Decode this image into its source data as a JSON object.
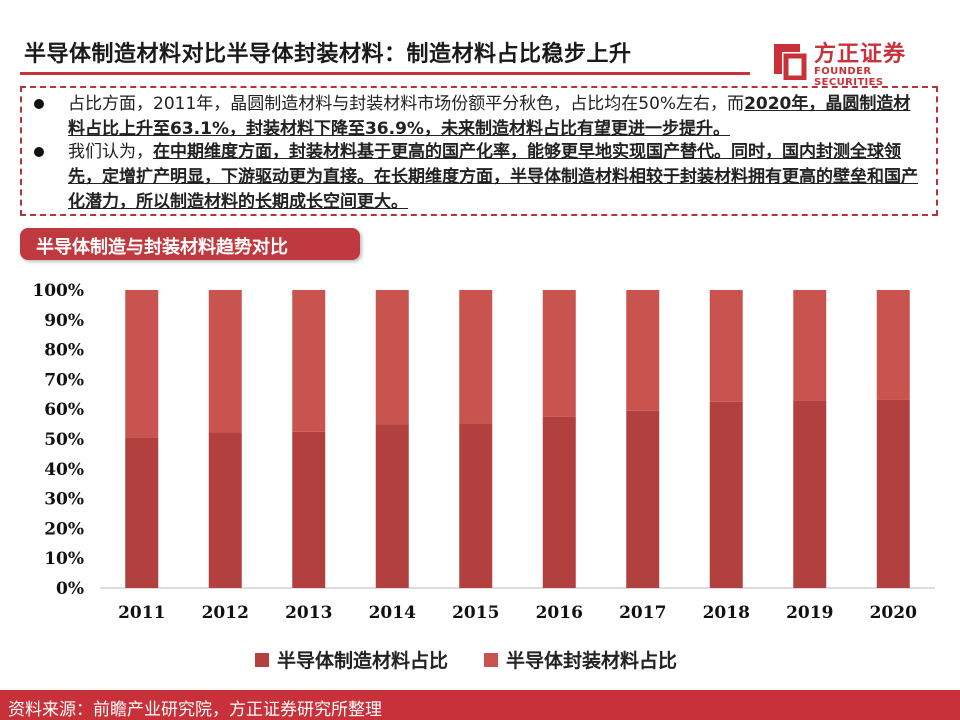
{
  "header": {
    "title": "半导体制造材料对比半导体封装材料：制造材料占比稳步上升",
    "logo_text": "方正证券",
    "logo_sub": "FOUNDER SECURITIES"
  },
  "summary": {
    "b1_plain": "占比方面，2011年，晶圆制造材料与封装材料市场份额平分秋色，占比均在50%左右，而",
    "b1_bold": "2020年，晶圆制造材料占比上升至63.1%，封装材料下降至36.9%，未来制造材料占比有望更进一步提升。",
    "b2_plain": "我们认为，",
    "b2_bold": "在中期维度方面，封装材料基于更高的国产化率，能够更早地实现国产替代。同时，国内封测全球领先，定增扩产明显，下游驱动更为直接。在长期维度方面，半导体制造材料相较于封装材料拥有更高的壁垒和国产化潜力，所以制造材料的长期成长空间更大。"
  },
  "chart_tab": "半导体制造与封装材料趋势对比",
  "colors": {
    "manufacturing": "#b1403f",
    "packaging": "#c9544f",
    "accent": "#c8313a"
  },
  "chart_data": {
    "type": "bar",
    "stacked": true,
    "categories": [
      "2011",
      "2012",
      "2013",
      "2014",
      "2015",
      "2016",
      "2017",
      "2018",
      "2019",
      "2020"
    ],
    "series": [
      {
        "name": "半导体制造材料占比",
        "values": [
          50.6,
          52.2,
          52.4,
          55.0,
          55.3,
          57.5,
          59.5,
          62.5,
          63.0,
          63.1
        ]
      },
      {
        "name": "半导体封装材料占比",
        "values": [
          49.4,
          47.8,
          47.6,
          45.0,
          44.7,
          42.5,
          40.5,
          37.5,
          37.0,
          36.9
        ]
      }
    ],
    "y_ticks": [
      "0%",
      "10%",
      "20%",
      "30%",
      "40%",
      "50%",
      "60%",
      "70%",
      "80%",
      "90%",
      "100%"
    ],
    "ylim": [
      0,
      100
    ],
    "legend_position": "bottom",
    "grid": false
  },
  "footer": {
    "source": "资料来源：前瞻产业研究院，方正证券研究所整理"
  }
}
